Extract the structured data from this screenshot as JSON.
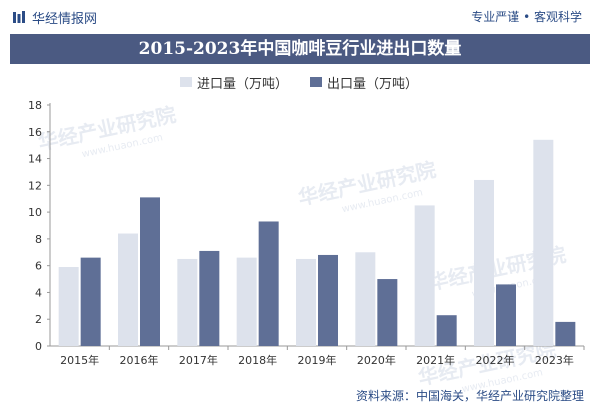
{
  "header": {
    "brand": "华经情报网",
    "slogan": "专业严谨 • 客观科学"
  },
  "chart_data": {
    "type": "bar",
    "title": "2015-2023年中国咖啡豆行业进出口数量",
    "categories": [
      "2015年",
      "2016年",
      "2017年",
      "2018年",
      "2019年",
      "2020年",
      "2021年",
      "2022年",
      "2023年"
    ],
    "series": [
      {
        "name": "进口量（万吨）",
        "color": "#dde2ec",
        "values": [
          5.9,
          8.4,
          6.5,
          6.6,
          6.5,
          7.0,
          10.5,
          12.4,
          15.4
        ]
      },
      {
        "name": "出口量（万吨）",
        "color": "#5f6f96",
        "values": [
          6.6,
          11.1,
          7.1,
          9.3,
          6.8,
          5.0,
          2.3,
          4.6,
          1.8
        ]
      }
    ],
    "ylim": [
      0,
      18
    ],
    "yticks": [
      0,
      2,
      4,
      6,
      8,
      10,
      12,
      14,
      16,
      18
    ],
    "legend_position": "top",
    "grid": false
  },
  "watermark": {
    "text": "华经产业研究院",
    "url": "www.huaon.com"
  },
  "footer": {
    "source": "资料来源：中国海关，华经产业研究院整理"
  }
}
